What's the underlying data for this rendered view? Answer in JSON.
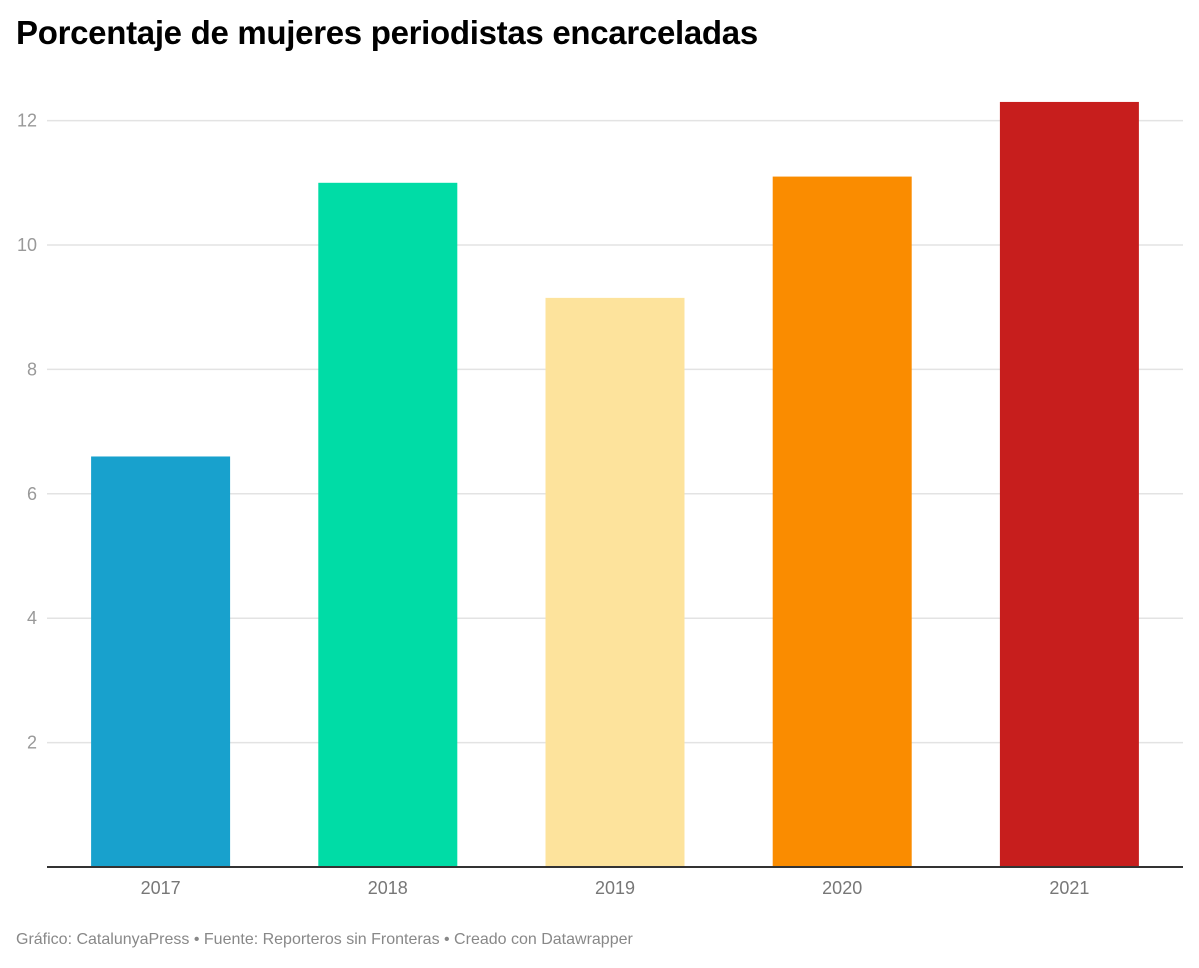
{
  "chart_data": {
    "type": "bar",
    "title": "Porcentaje de mujeres periodistas encarceladas",
    "xlabel": "",
    "ylabel": "",
    "categories": [
      "2017",
      "2018",
      "2019",
      "2020",
      "2021"
    ],
    "values": [
      6.6,
      11.0,
      9.15,
      11.1,
      12.3
    ],
    "colors": [
      "#18a1cd",
      "#00dca6",
      "#fde39c",
      "#fa8c00",
      "#c71e1d"
    ],
    "ylim": [
      0,
      12.3
    ],
    "yticks": [
      2,
      4,
      6,
      8,
      10,
      12
    ],
    "grid": true,
    "legend": "none"
  },
  "footer": {
    "text": "Gráfico: CatalunyaPress • Fuente: Reporteros sin Fronteras • Creado con Datawrapper"
  }
}
